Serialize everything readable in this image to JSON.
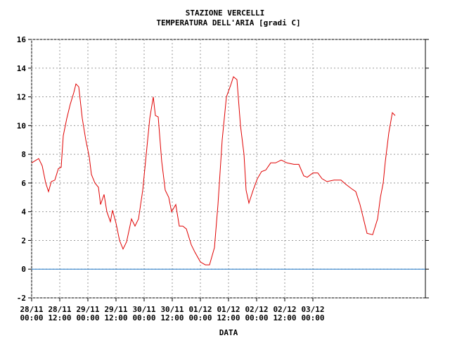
{
  "chart_data": {
    "type": "line",
    "title": "STAZIONE VERCELLI",
    "subtitle": "TEMPERATURA DELL'ARIA [gradi C]",
    "x_label": "DATA",
    "xlim": [
      0,
      168
    ],
    "xticks": [
      {
        "value": 0,
        "label": [
          "28/11",
          "00:00"
        ]
      },
      {
        "value": 12,
        "label": [
          "28/11",
          "12:00"
        ]
      },
      {
        "value": 24,
        "label": [
          "29/11",
          "00:00"
        ]
      },
      {
        "value": 36,
        "label": [
          "29/11",
          "12:00"
        ]
      },
      {
        "value": 48,
        "label": [
          "30/11",
          "00:00"
        ]
      },
      {
        "value": 60,
        "label": [
          "30/11",
          "12:00"
        ]
      },
      {
        "value": 72,
        "label": [
          "01/12",
          "00:00"
        ]
      },
      {
        "value": 84,
        "label": [
          "01/12",
          "12:00"
        ]
      },
      {
        "value": 96,
        "label": [
          "02/12",
          "00:00"
        ]
      },
      {
        "value": 108,
        "label": [
          "02/12",
          "12:00"
        ]
      },
      {
        "value": 120,
        "label": [
          "03/12",
          "00:00"
        ]
      }
    ],
    "ylim": [
      -2,
      16
    ],
    "yticks": [
      -2,
      0,
      2,
      4,
      6,
      8,
      10,
      12,
      14,
      16
    ],
    "grid": true,
    "reference_line": {
      "value": 0,
      "color": "#1e78c8"
    },
    "series": [
      {
        "color": "#e00000",
        "x": [
          0,
          3,
          4.5,
          6,
          7.2,
          8.4,
          9.9,
          11.4,
          12.6,
          13.5,
          15,
          16.5,
          18,
          18.9,
          20.1,
          21.6,
          23.1,
          24.6,
          25.5,
          27,
          28.5,
          29.4,
          30.9,
          32.1,
          33.6,
          34.5,
          36,
          37.5,
          39,
          40.5,
          42.6,
          44.1,
          45.6,
          47.4,
          48.9,
          50.4,
          51.9,
          52.8,
          54,
          55.5,
          57,
          58.5,
          59.7,
          61.5,
          63,
          64.5,
          66,
          68.1,
          69.6,
          72,
          74.1,
          75.9,
          78,
          79.5,
          81.3,
          83.1,
          84.9,
          86.1,
          87.6,
          89.1,
          90.6,
          91.5,
          92.7,
          94.5,
          96.3,
          98.1,
          99.9,
          102,
          104.1,
          106.5,
          108.9,
          111.9,
          114,
          116.1,
          117.6,
          120,
          122.1,
          123.9,
          126,
          129,
          132,
          134.1,
          136.5,
          138.3,
          140.1,
          141.6,
          143.1,
          145.5,
          147.6,
          148.8,
          150,
          150.9,
          152.4,
          153.9,
          155.1
        ],
        "values": [
          7.4,
          7.7,
          7.2,
          6.0,
          5.4,
          6.1,
          6.2,
          7.0,
          7.1,
          9.3,
          10.5,
          11.5,
          12.3,
          12.9,
          12.7,
          10.5,
          9.0,
          7.8,
          6.6,
          6.0,
          5.7,
          4.5,
          5.2,
          4.0,
          3.3,
          4.1,
          3.2,
          2.0,
          1.4,
          1.9,
          3.5,
          3.0,
          3.5,
          5.5,
          8.0,
          10.5,
          12.0,
          10.7,
          10.6,
          7.5,
          5.5,
          5.0,
          4.0,
          4.5,
          3.0,
          3.0,
          2.8,
          1.7,
          1.2,
          0.5,
          0.3,
          0.3,
          1.5,
          4.5,
          9.0,
          12.0,
          12.8,
          13.4,
          13.2,
          10.0,
          8.0,
          5.5,
          4.6,
          5.5,
          6.3,
          6.8,
          6.9,
          7.4,
          7.4,
          7.6,
          7.4,
          7.3,
          7.3,
          6.5,
          6.4,
          6.7,
          6.7,
          6.3,
          6.1,
          6.2,
          6.2,
          5.9,
          5.6,
          5.4,
          4.5,
          3.5,
          2.5,
          2.4,
          3.5,
          5.0,
          6.0,
          7.5,
          9.5,
          10.9,
          10.7
        ]
      }
    ]
  }
}
